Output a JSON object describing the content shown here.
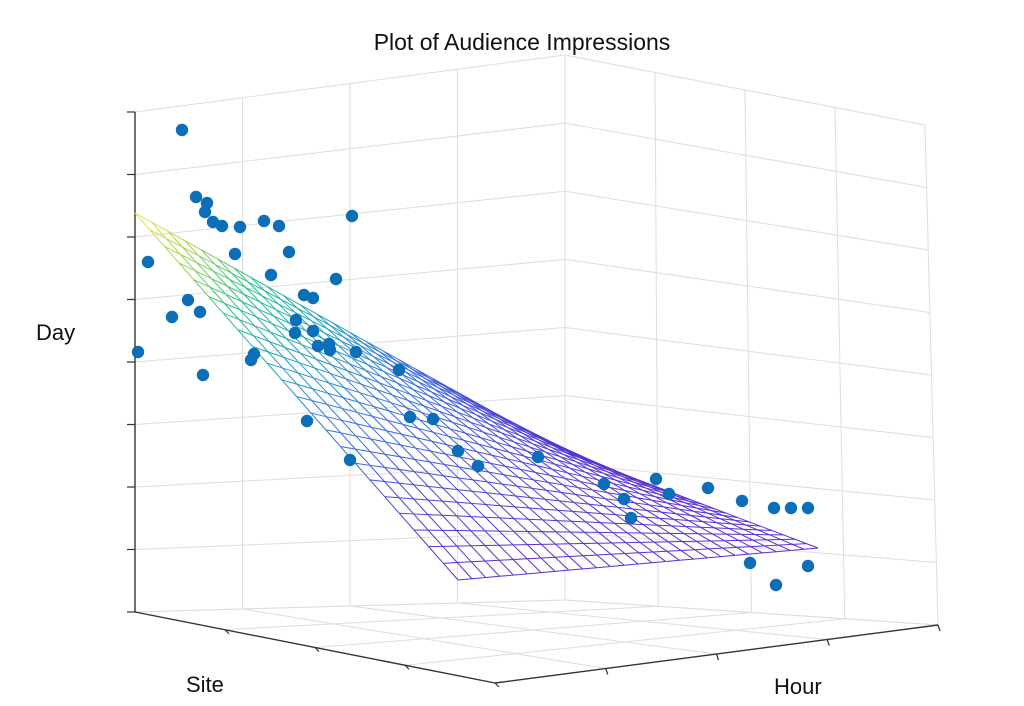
{
  "chart_data": {
    "type": "scatter3d-with-surface",
    "title": "Plot of Audience Impressions",
    "xlabel": "Site",
    "ylabel": "Hour",
    "zlabel": "Day",
    "grid": true,
    "tick_labels_visible": false,
    "surface_colormap": [
      "#f4e34a",
      "#a6d64a",
      "#2bbd8c",
      "#23a3c4",
      "#3d6ae0",
      "#5a2fd0"
    ],
    "point_color": "#0b6fb8"
  }
}
